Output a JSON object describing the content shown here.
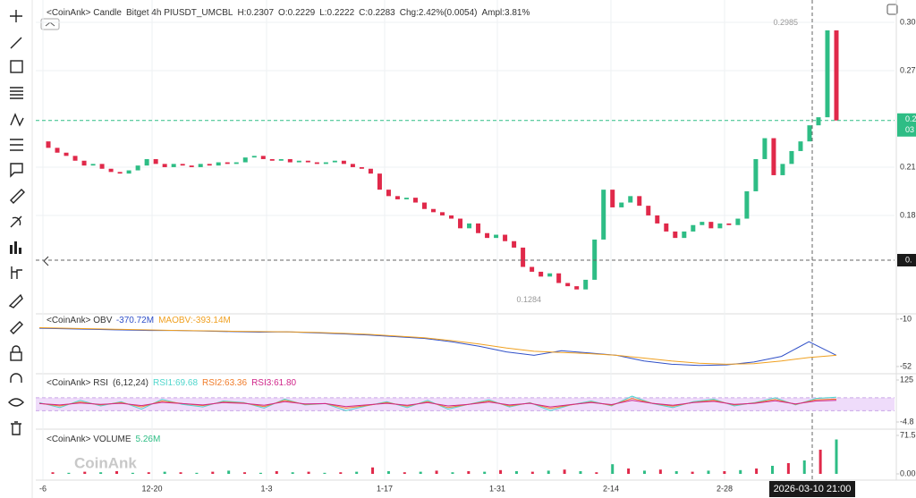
{
  "chart_data": [
    {
      "type": "candlestick",
      "title": "<CoinAnk> Candle",
      "subtitle": "Bitget 4h PIUSDT_UMCBL",
      "info": [
        "H:0.2307",
        "O:0.2229",
        "L:0.2222",
        "C:0.2283",
        "Chg:2.42%(0.0054)",
        "Ampl:3.81%"
      ],
      "up_color": "#2ebd85",
      "down_color": "#e0294a",
      "values": [
        0.226,
        0.222,
        0.219,
        0.217,
        0.214,
        0.211,
        0.212,
        0.209,
        0.207,
        0.206,
        0.208,
        0.211,
        0.215,
        0.212,
        0.21,
        0.212,
        0.211,
        0.21,
        0.212,
        0.211,
        0.213,
        0.212,
        0.213,
        0.216,
        0.217,
        0.215,
        0.214,
        0.215,
        0.213,
        0.214,
        0.213,
        0.212,
        0.213,
        0.214,
        0.212,
        0.21,
        0.209,
        0.206,
        0.196,
        0.192,
        0.19,
        0.191,
        0.188,
        0.184,
        0.182,
        0.18,
        0.178,
        0.172,
        0.175,
        0.169,
        0.166,
        0.168,
        0.164,
        0.16,
        0.148,
        0.145,
        0.142,
        0.144,
        0.138,
        0.136,
        0.134,
        0.14,
        0.165,
        0.196,
        0.185,
        0.188,
        0.192,
        0.186,
        0.18,
        0.175,
        0.17,
        0.166,
        0.17,
        0.174,
        0.176,
        0.172,
        0.175,
        0.174,
        0.178,
        0.195,
        0.215,
        0.228,
        0.205,
        0.212,
        0.22,
        0.226,
        0.236,
        0.241,
        0.295,
        0.239
      ],
      "ylim": [
        0.1194,
        0.3111
      ],
      "yticks": [
        {
          "value": 0.3,
          "label": "0.30"
        },
        {
          "value": 0.27,
          "label": "0.27"
        },
        {
          "value": 0.21,
          "label": "0.21"
        },
        {
          "value": 0.18,
          "label": "0.18"
        }
      ],
      "annotations": [
        0.2985,
        0.1284
      ],
      "price_tag": [
        "0.2",
        "03"
      ],
      "crosshair_label": "0.",
      "xtick_labels": [
        "-6",
        "12-20",
        "1-3",
        "1-17",
        "1-31",
        "2-14",
        "2-28"
      ],
      "crosshair_time": "2026-03-10 21:00"
    },
    {
      "type": "line",
      "title": "<CoinAnk> OBV",
      "ylim": [
        -568,
        -60
      ],
      "yticks": [
        {
          "value": -100,
          "label": "-10"
        },
        {
          "value": -520,
          "label": "-52"
        }
      ],
      "series": [
        {
          "name": "-370.72M",
          "color": "#3050c8",
          "values": [
            -180,
            -185,
            -190,
            -195,
            -200,
            -200,
            -205,
            -210,
            -215,
            -212,
            -220,
            -230,
            -240,
            -255,
            -270,
            -300,
            -340,
            -390,
            -420,
            -380,
            -400,
            -420,
            -470,
            -500,
            -510,
            -505,
            -480,
            -430,
            -300,
            -420
          ]
        },
        {
          "name": "MAOBV:-393.14M",
          "color": "#f0a020",
          "values": [
            -175,
            -180,
            -185,
            -190,
            -195,
            -200,
            -203,
            -207,
            -210,
            -212,
            -216,
            -225,
            -235,
            -250,
            -265,
            -290,
            -320,
            -355,
            -385,
            -395,
            -405,
            -420,
            -445,
            -470,
            -490,
            -500,
            -495,
            -470,
            -440,
            -420
          ]
        }
      ]
    },
    {
      "type": "line",
      "title": "<CoinAnk> RSI",
      "subtitle": "(6,12,24)",
      "ylim": [
        -21.4,
        141.6
      ],
      "yticks": [
        {
          "value": 125,
          "label": "125"
        },
        {
          "value": -4.8,
          "label": "-4.8"
        }
      ],
      "band": [
        30,
        70
      ],
      "band_color": "#efdcfa",
      "series": [
        {
          "name": "RSI1:69.68",
          "color": "#4fd6cc",
          "values": [
            55,
            40,
            62,
            45,
            58,
            35,
            65,
            50,
            42,
            60,
            55,
            38,
            66,
            48,
            52,
            30,
            45,
            58,
            40,
            62,
            35,
            50,
            64,
            42,
            55,
            30,
            48,
            60,
            45,
            75,
            52,
            40,
            58,
            66,
            45,
            55,
            70,
            48,
            68,
            72
          ]
        },
        {
          "name": "RSI2:63.36",
          "color": "#f07c2a",
          "values": [
            53,
            45,
            57,
            48,
            55,
            42,
            60,
            52,
            46,
            57,
            54,
            43,
            62,
            50,
            52,
            38,
            46,
            55,
            44,
            58,
            40,
            50,
            60,
            45,
            54,
            37,
            48,
            57,
            47,
            68,
            53,
            44,
            56,
            62,
            48,
            54,
            65,
            50,
            64,
            66
          ]
        },
        {
          "name": "RSI3:61.80",
          "color": "#d0268a",
          "values": [
            52,
            48,
            54,
            50,
            53,
            46,
            56,
            52,
            48,
            55,
            53,
            47,
            58,
            51,
            52,
            43,
            48,
            53,
            47,
            55,
            45,
            50,
            57,
            48,
            53,
            42,
            49,
            55,
            49,
            62,
            53,
            47,
            55,
            59,
            50,
            53,
            61,
            51,
            60,
            62
          ]
        }
      ]
    },
    {
      "type": "bar",
      "title": "<CoinAnk> VOLUME",
      "subtitle": "5.26M",
      "ylim": [
        -11.6,
        81.5
      ],
      "yticks": [
        {
          "value": 71.5,
          "label": "71.5"
        },
        {
          "value": 0,
          "label": "0.00"
        }
      ],
      "up_color": "#2ebd85",
      "down_color": "#e0294a",
      "values": [
        3,
        2,
        4,
        3,
        5,
        2,
        3,
        4,
        3,
        2,
        4,
        6,
        3,
        2,
        5,
        3,
        4,
        2,
        3,
        4,
        12,
        5,
        3,
        4,
        6,
        3,
        5,
        4,
        7,
        5,
        4,
        6,
        8,
        5,
        3,
        18,
        10,
        6,
        8,
        5,
        4,
        6,
        5,
        7,
        10,
        15,
        20,
        25,
        45,
        64
      ]
    }
  ],
  "watermark": "CoinAnk"
}
